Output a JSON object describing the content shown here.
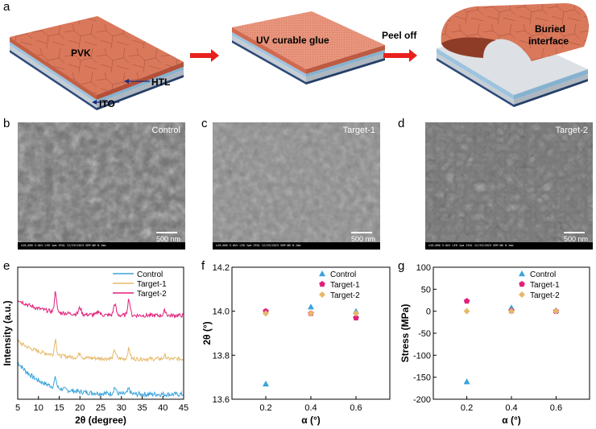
{
  "panel_labels": {
    "a": "a",
    "b": "b",
    "c": "c",
    "d": "d",
    "e": "e",
    "f": "f",
    "g": "g"
  },
  "schematic": {
    "pvk_label": "PVK",
    "htl_label": "HTL",
    "ito_label": "ITO",
    "glue_label": "UV curable glue",
    "peel_label": "Peel off",
    "buried_label_1": "Buried",
    "buried_label_2": "interface",
    "colors": {
      "perovskite": "#d9785b",
      "glue": "#e8957d",
      "htl": "#9cc4df",
      "ito": "#b8c2cc",
      "arrow": "#e8201c"
    }
  },
  "sem_images": [
    {
      "label": "Control",
      "scale": "500 nm",
      "bar_text": "x20,000   5.0kV  LED   1μm   JEOL   12/29/2023   SEM   WD 8.1mm"
    },
    {
      "label": "Target-1",
      "scale": "500 nm",
      "bar_text": "x20,000   5.0kV  LED   1μm   JEOL   12/29/2023   SEM   WD 8.1mm"
    },
    {
      "label": "Target-2",
      "scale": "500 nm",
      "bar_text": "x20,000   5.0kV  LED   1μm   JEOL   12/29/2023   SEM   WD 8.1mm"
    }
  ],
  "chart_data": [
    {
      "type": "line",
      "panel": "e",
      "xlabel": "2θ (degree)",
      "ylabel": "Intensity (a.u.)",
      "xlim": [
        5,
        45
      ],
      "xticks": [
        5,
        10,
        15,
        20,
        25,
        30,
        35,
        40,
        45
      ],
      "series": [
        {
          "name": "Control",
          "color": "#3aa3dc"
        },
        {
          "name": "Target-1",
          "color": "#e6b86a"
        },
        {
          "name": "Target-2",
          "color": "#e0207a"
        }
      ],
      "legend_position": "top-right"
    },
    {
      "type": "scatter",
      "panel": "f",
      "xlabel": "α (°)",
      "ylabel": "2θ (°)",
      "xticks": [
        0.2,
        0.4,
        0.6
      ],
      "xlim": [
        0.05,
        0.75
      ],
      "ylim": [
        13.6,
        14.2
      ],
      "yticks": [
        13.6,
        13.8,
        14.0,
        14.2
      ],
      "series": [
        {
          "name": "Control",
          "color": "#3aa3dc",
          "marker": "triangle",
          "x": [
            0.2,
            0.4,
            0.6
          ],
          "y": [
            13.67,
            14.02,
            14.0
          ]
        },
        {
          "name": "Target-1",
          "color": "#e0207a",
          "marker": "pentagon",
          "x": [
            0.2,
            0.4,
            0.6
          ],
          "y": [
            14.0,
            13.99,
            13.97
          ]
        },
        {
          "name": "Target-2",
          "color": "#e6b86a",
          "marker": "diamond",
          "x": [
            0.2,
            0.4,
            0.6
          ],
          "y": [
            13.99,
            13.99,
            13.99
          ]
        }
      ],
      "legend_position": "top-right"
    },
    {
      "type": "scatter",
      "panel": "g",
      "xlabel": "α (°)",
      "ylabel": "Stress (MPa)",
      "xticks": [
        0.2,
        0.4,
        0.6
      ],
      "xlim": [
        0.05,
        0.75
      ],
      "ylim": [
        -200,
        100
      ],
      "yticks": [
        -200,
        -150,
        -100,
        -50,
        0,
        50,
        100
      ],
      "series": [
        {
          "name": "Control",
          "color": "#3aa3dc",
          "marker": "triangle",
          "x": [
            0.2,
            0.4,
            0.6
          ],
          "y": [
            -160,
            8,
            2
          ]
        },
        {
          "name": "Target-1",
          "color": "#e0207a",
          "marker": "pentagon",
          "x": [
            0.2,
            0.4,
            0.6
          ],
          "y": [
            23,
            1,
            0
          ]
        },
        {
          "name": "Target-2",
          "color": "#e6b86a",
          "marker": "diamond",
          "x": [
            0.2,
            0.4,
            0.6
          ],
          "y": [
            0,
            0,
            0
          ]
        }
      ],
      "legend_position": "top-right"
    }
  ]
}
